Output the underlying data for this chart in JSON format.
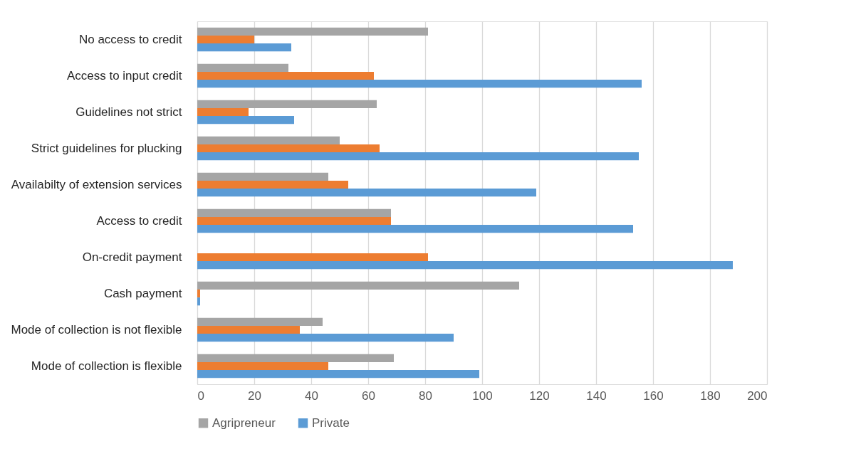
{
  "chart_data": {
    "type": "bar",
    "orientation": "horizontal",
    "categories": [
      "No access  to credit",
      "Access to input credit",
      "Guidelines not strict",
      "Strict guidelines for plucking",
      "Availabilty of extension services",
      "Access to credit",
      "On-credit payment",
      "Cash payment",
      "Mode of  collection is not flexible",
      "Mode of  collection is flexible"
    ],
    "series": [
      {
        "name": "Agripreneur",
        "color": "#a5a5a5",
        "values": [
          81,
          32,
          63,
          50,
          46,
          68,
          0,
          113,
          44,
          69
        ]
      },
      {
        "color": "#ed7d31",
        "values": [
          20,
          62,
          18,
          64,
          53,
          68,
          81,
          1,
          36,
          46
        ]
      },
      {
        "name": "Private",
        "color": "#5b9bd5",
        "values": [
          33,
          156,
          34,
          155,
          119,
          153,
          188,
          1,
          90,
          99
        ]
      }
    ],
    "xlim": [
      0,
      200
    ],
    "xticks": [
      0,
      20,
      40,
      60,
      80,
      100,
      120,
      140,
      160,
      180,
      200
    ],
    "grid": "x",
    "legend": "bottom"
  }
}
